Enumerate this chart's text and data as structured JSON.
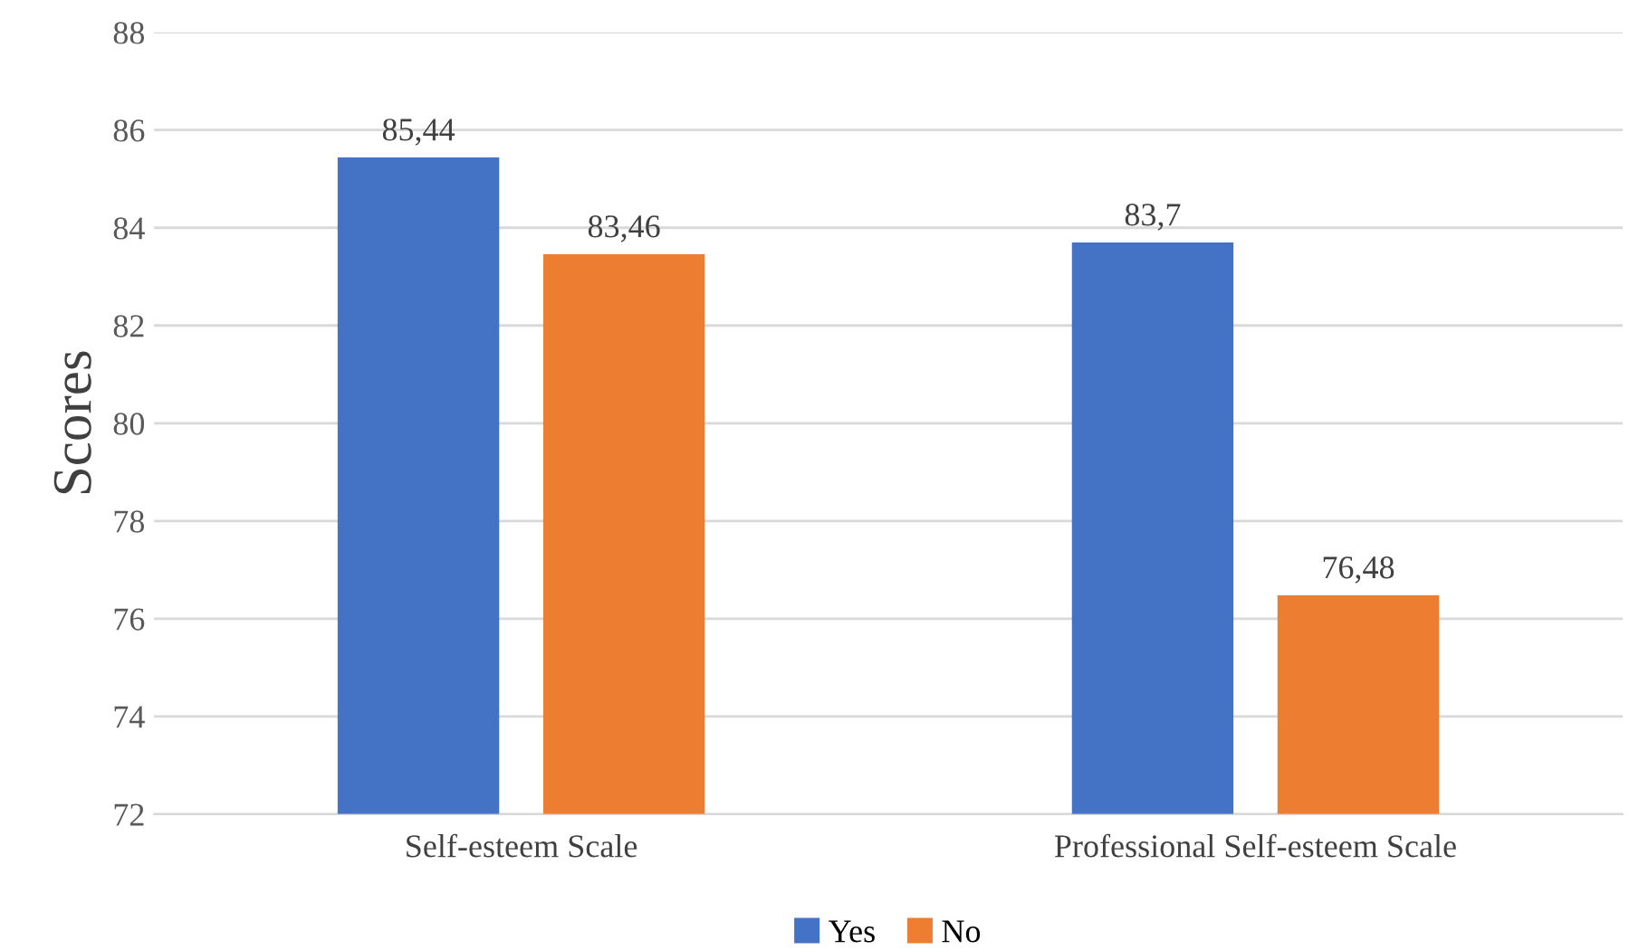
{
  "chart_data": {
    "type": "bar",
    "ylabel": "Scores",
    "categories": [
      "Self-esteem Scale",
      "Professional Self-esteem Scale"
    ],
    "series": [
      {
        "name": "Yes",
        "color": "#4472c4",
        "values": [
          85.44,
          83.7
        ],
        "value_labels": [
          "85,44",
          "83,7"
        ]
      },
      {
        "name": "No",
        "color": "#ed7d31",
        "values": [
          83.46,
          76.48
        ],
        "value_labels": [
          "83,46",
          "76,48"
        ]
      }
    ],
    "ylim": [
      72,
      88
    ],
    "yticks": [
      72,
      74,
      76,
      78,
      80,
      82,
      84,
      86,
      88
    ],
    "grid": "y",
    "legend": "bottom"
  }
}
